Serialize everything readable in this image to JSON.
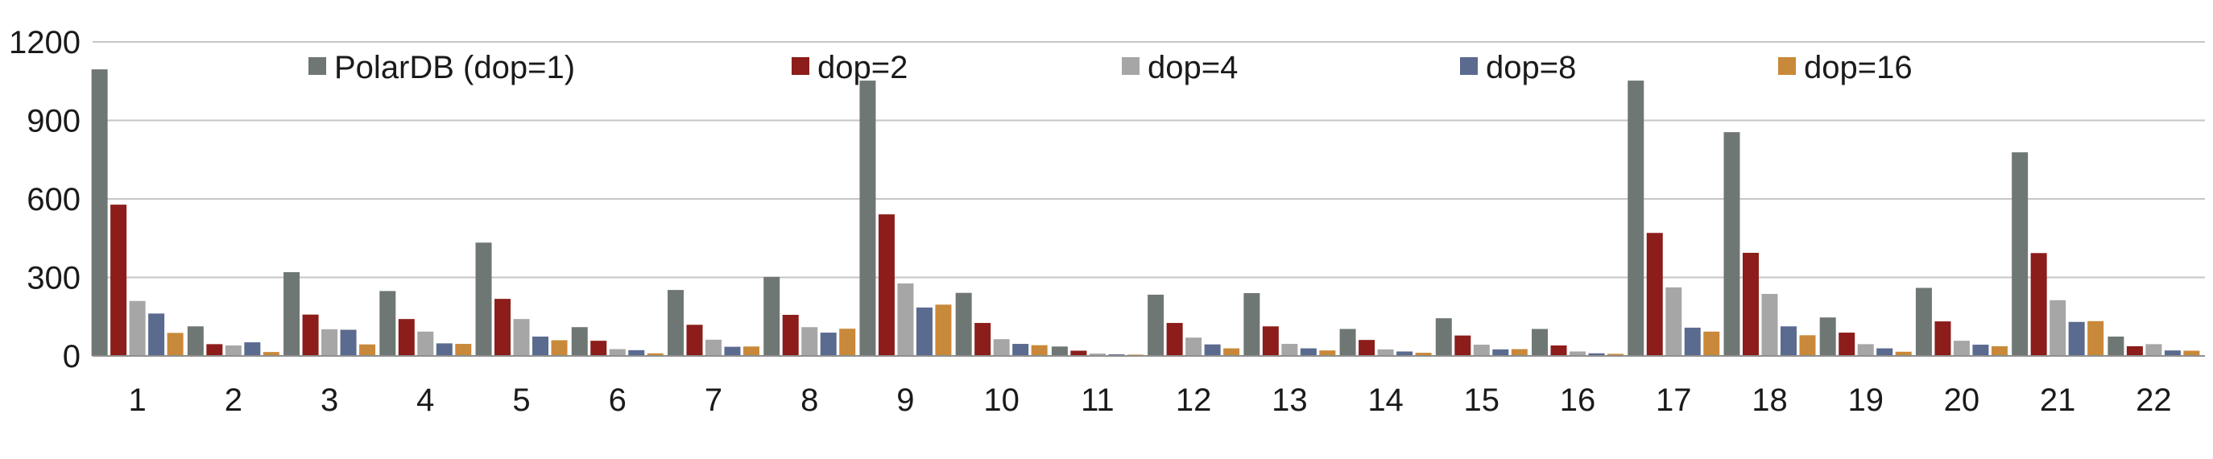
{
  "chart_data": {
    "type": "bar",
    "title": "",
    "xlabel": "",
    "ylabel": "",
    "ylim": [
      0,
      1200
    ],
    "yticks": [
      0,
      300,
      600,
      900,
      1200
    ],
    "grid": "horizontal",
    "legend_position": "top",
    "categories": [
      "1",
      "2",
      "3",
      "4",
      "5",
      "6",
      "7",
      "8",
      "9",
      "10",
      "11",
      "12",
      "13",
      "14",
      "15",
      "16",
      "17",
      "18",
      "19",
      "20",
      "21",
      "22"
    ],
    "series": [
      {
        "name": "PolarDB (dop=1)",
        "color": "#6f7774",
        "values": [
          1095,
          113,
          320,
          248,
          433,
          110,
          252,
          302,
          1052,
          241,
          36,
          234,
          240,
          103,
          144,
          103,
          1052,
          855,
          147,
          260,
          778,
          74
        ]
      },
      {
        "name": "dop=2",
        "color": "#8c1d1a",
        "values": [
          578,
          45,
          158,
          141,
          218,
          58,
          119,
          157,
          541,
          126,
          20,
          126,
          113,
          61,
          78,
          40,
          470,
          394,
          89,
          132,
          393,
          37
        ]
      },
      {
        "name": "dop=4",
        "color": "#a6a6a6",
        "values": [
          210,
          40,
          102,
          93,
          141,
          26,
          62,
          110,
          277,
          64,
          9,
          70,
          46,
          25,
          43,
          17,
          262,
          237,
          45,
          58,
          213,
          45
        ]
      },
      {
        "name": "dop=8",
        "color": "#5b6a8f",
        "values": [
          162,
          52,
          100,
          48,
          74,
          22,
          35,
          89,
          185,
          46,
          6,
          44,
          29,
          17,
          25,
          10,
          108,
          113,
          29,
          43,
          130,
          21
        ]
      },
      {
        "name": "dop=16",
        "color": "#c8893a",
        "values": [
          88,
          15,
          44,
          46,
          60,
          10,
          36,
          104,
          196,
          41,
          5,
          29,
          21,
          12,
          26,
          8,
          93,
          79,
          16,
          37,
          133,
          20
        ]
      }
    ]
  }
}
